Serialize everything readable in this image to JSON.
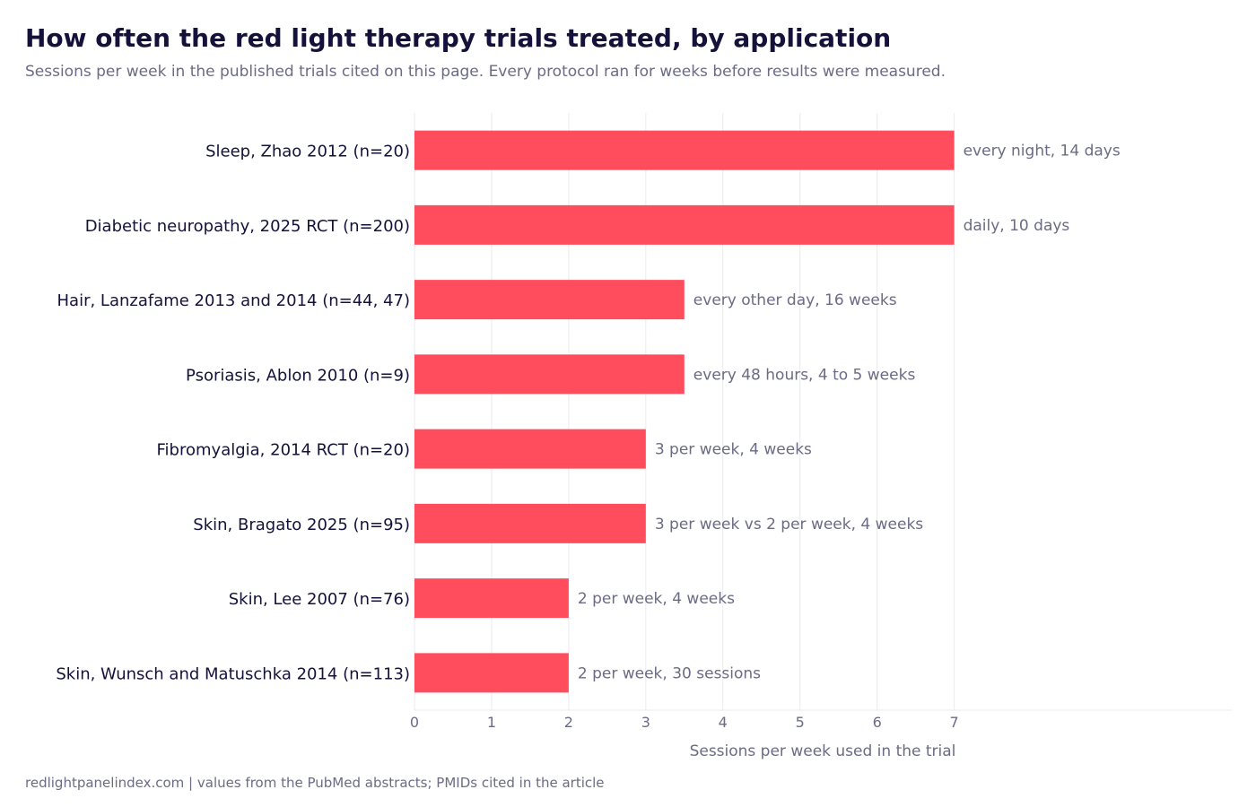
{
  "title": "How often the red light therapy trials treated, by application",
  "subtitle": "Sessions per week in the published trials cited on this page. Every protocol ran for weeks before results were measured.",
  "footer": "redlightpanelindex.com  |  values from the PubMed abstracts; PMIDs cited in the article",
  "colors": {
    "bar": "#ff4d5e",
    "grid": "#ebebf0",
    "category_text": "#14123a",
    "muted_text": "#6b6b85"
  },
  "chart_data": {
    "type": "bar",
    "orientation": "horizontal",
    "categories": [
      "Sleep, Zhao 2012 (n=20)",
      "Diabetic neuropathy, 2025 RCT (n=200)",
      "Hair, Lanzafame 2013 and 2014 (n=44, 47)",
      "Psoriasis, Ablon 2010 (n=9)",
      "Fibromyalgia, 2014 RCT (n=20)",
      "Skin, Bragato 2025 (n=95)",
      "Skin, Lee 2007 (n=76)",
      "Skin, Wunsch and Matuschka 2014 (n=113)"
    ],
    "values": [
      7,
      7,
      3.5,
      3.5,
      3,
      3,
      2,
      2
    ],
    "data_labels": [
      "every night, 14 days",
      "daily, 10 days",
      "every other day, 16 weeks",
      "every 48 hours, 4 to 5 weeks",
      "3 per week, 4 weeks",
      "3 per week vs 2 per week, 4 weeks",
      "2 per week, 4 weeks",
      "2 per week, 30 sessions"
    ],
    "xlabel": "Sessions per week used in the trial",
    "ylabel": "",
    "xlim": [
      0,
      10.6
    ],
    "xticks": [
      0,
      1,
      2,
      3,
      4,
      5,
      6,
      7
    ],
    "grid": "vertical"
  }
}
